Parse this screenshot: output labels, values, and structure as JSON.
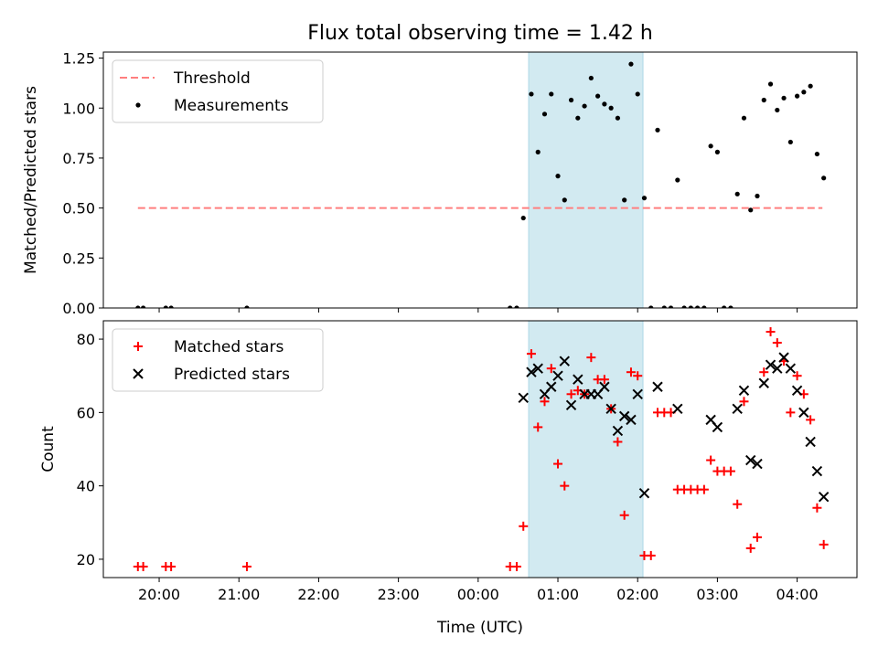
{
  "title": "Flux total observing time = 1.42 h",
  "chart_data": [
    {
      "type": "scatter",
      "panel": "top",
      "ylabel": "Matched/Predicted stars",
      "xlabel": "",
      "xlim": [
        "19:18",
        "04:45"
      ],
      "ylim": [
        0,
        1.28
      ],
      "yticks": [
        0,
        0.25,
        0.5,
        0.75,
        1.0,
        1.25
      ],
      "ytick_labels": [
        "0.00",
        "0.25",
        "0.50",
        "0.75",
        "1.00",
        "1.25"
      ],
      "highlight_span": {
        "start": "00:38",
        "end": "02:04",
        "color": "#add8e6"
      },
      "legend_position": "upper-left",
      "series": [
        {
          "name": "Threshold",
          "kind": "dashed-line",
          "color": "#ff7f7f",
          "x": [
            "19:44",
            "04:19"
          ],
          "y": [
            0.5,
            0.5
          ]
        },
        {
          "name": "Measurements",
          "kind": "points",
          "color": "#000000",
          "x": [
            "19:44",
            "19:48",
            "20:05",
            "20:09",
            "21:06",
            "00:24",
            "00:29",
            "00:34",
            "00:40",
            "00:45",
            "00:50",
            "00:55",
            "01:00",
            "01:05",
            "01:10",
            "01:15",
            "01:20",
            "01:25",
            "01:30",
            "01:35",
            "01:40",
            "01:45",
            "01:50",
            "01:55",
            "02:00",
            "02:05",
            "02:10",
            "02:15",
            "02:20",
            "02:25",
            "02:30",
            "02:35",
            "02:40",
            "02:45",
            "02:50",
            "02:55",
            "03:00",
            "03:05",
            "03:10",
            "03:15",
            "03:20",
            "03:25",
            "03:30",
            "03:35",
            "03:40",
            "03:45",
            "03:50",
            "03:55",
            "04:00",
            "04:05",
            "04:10",
            "04:15",
            "04:20"
          ],
          "y": [
            0,
            0,
            0,
            0,
            0,
            0,
            0,
            0.45,
            1.07,
            0.78,
            0.97,
            1.07,
            0.66,
            0.54,
            1.04,
            0.95,
            1.01,
            1.15,
            1.06,
            1.02,
            1.0,
            0.95,
            0.54,
            1.22,
            1.07,
            0.55,
            0,
            0.89,
            0,
            0,
            0.64,
            0,
            0,
            0,
            0,
            0.81,
            0.78,
            0,
            0,
            0.57,
            0.95,
            0.49,
            0.56,
            1.04,
            1.12,
            0.99,
            1.05,
            0.83,
            1.06,
            1.08,
            1.11,
            0.77,
            0.65
          ]
        }
      ]
    },
    {
      "type": "scatter",
      "panel": "bottom",
      "ylabel": "Count",
      "xlabel": "Time (UTC)",
      "xlim": [
        "19:18",
        "04:45"
      ],
      "ylim": [
        15,
        85
      ],
      "yticks": [
        20,
        40,
        60,
        80
      ],
      "xticks": [
        "20:00",
        "21:00",
        "22:00",
        "23:00",
        "00:00",
        "01:00",
        "02:00",
        "03:00",
        "04:00"
      ],
      "highlight_span": {
        "start": "00:38",
        "end": "02:04",
        "color": "#add8e6"
      },
      "legend_position": "upper-left",
      "series": [
        {
          "name": "Matched stars",
          "marker": "+",
          "color": "#ff0000",
          "x": [
            "19:44",
            "19:48",
            "20:05",
            "20:09",
            "21:06",
            "00:24",
            "00:29",
            "00:34",
            "00:40",
            "00:45",
            "00:50",
            "00:55",
            "01:00",
            "01:05",
            "01:10",
            "01:15",
            "01:20",
            "01:25",
            "01:30",
            "01:35",
            "01:40",
            "01:45",
            "01:50",
            "01:55",
            "02:00",
            "02:05",
            "02:10",
            "02:15",
            "02:20",
            "02:25",
            "02:30",
            "02:35",
            "02:40",
            "02:45",
            "02:50",
            "02:55",
            "03:00",
            "03:05",
            "03:10",
            "03:15",
            "03:20",
            "03:25",
            "03:30",
            "03:35",
            "03:40",
            "03:45",
            "03:50",
            "03:55",
            "04:00",
            "04:05",
            "04:10",
            "04:15",
            "04:20"
          ],
          "y": [
            18,
            18,
            18,
            18,
            18,
            18,
            18,
            29,
            76,
            56,
            63,
            72,
            46,
            40,
            65,
            66,
            65,
            75,
            69,
            69,
            61,
            52,
            32,
            71,
            70,
            21,
            21,
            60,
            60,
            60,
            39,
            39,
            39,
            39,
            39,
            47,
            44,
            44,
            44,
            35,
            63,
            23,
            26,
            71,
            82,
            79,
            74,
            60,
            70,
            65,
            58,
            34,
            24
          ]
        },
        {
          "name": "Predicted stars",
          "marker": "x",
          "color": "#000000",
          "x": [
            "00:34",
            "00:40",
            "00:45",
            "00:50",
            "00:55",
            "01:00",
            "01:05",
            "01:10",
            "01:15",
            "01:20",
            "01:25",
            "01:30",
            "01:35",
            "01:40",
            "01:45",
            "01:50",
            "01:55",
            "02:00",
            "02:05",
            "02:15",
            "02:30",
            "02:55",
            "03:00",
            "03:15",
            "03:20",
            "03:25",
            "03:30",
            "03:35",
            "03:40",
            "03:45",
            "03:50",
            "03:55",
            "04:00",
            "04:05",
            "04:10",
            "04:15",
            "04:20"
          ],
          "y": [
            64,
            71,
            72,
            65,
            67,
            70,
            74,
            62,
            69,
            65,
            65,
            65,
            67,
            61,
            55,
            59,
            58,
            65,
            38,
            67,
            61,
            58,
            56,
            61,
            66,
            47,
            46,
            68,
            73,
            72,
            75,
            72,
            66,
            60,
            52,
            44,
            37
          ]
        }
      ]
    }
  ]
}
